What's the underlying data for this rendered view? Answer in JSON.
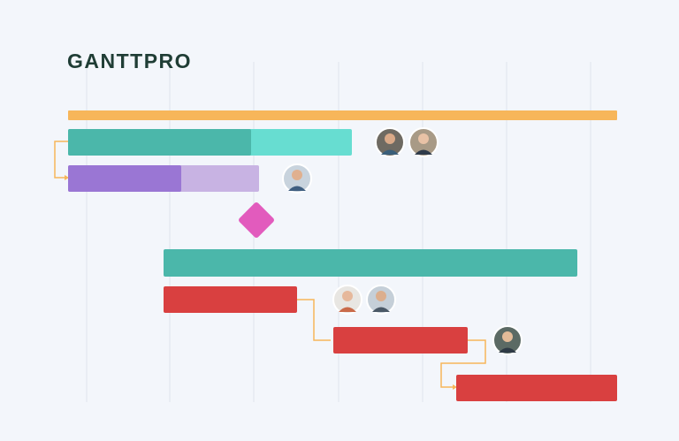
{
  "logo": "GANTTPRO"
}
